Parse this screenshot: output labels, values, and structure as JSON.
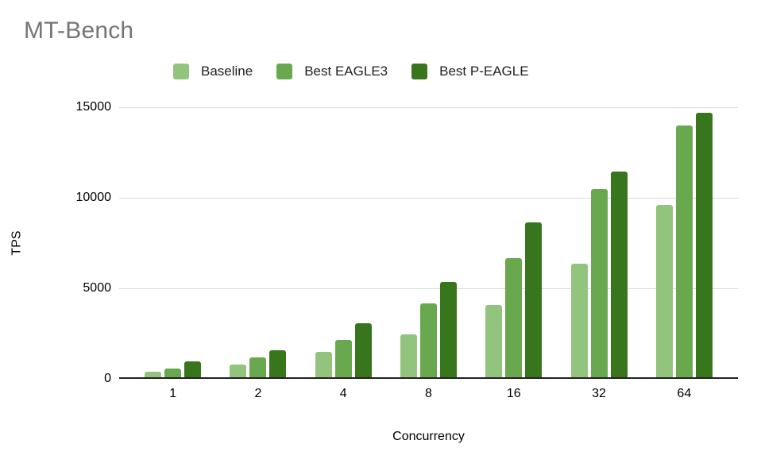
{
  "title": "MT-Bench",
  "colors": {
    "title_gray": "#757575",
    "gridline": "#d9d9d9",
    "axis_line": "#212121",
    "baseline_green": "#93c47d",
    "eagle3_green": "#6aa84f",
    "p_eagle_green": "#38761d"
  },
  "legend": [
    {
      "label": "Baseline",
      "color": "#93c47d"
    },
    {
      "label": "Best EAGLE3",
      "color": "#6aa84f"
    },
    {
      "label": "Best P-EAGLE",
      "color": "#38761d"
    }
  ],
  "chart_data": {
    "type": "bar",
    "title": "MT-Bench",
    "xlabel": "Concurrency",
    "ylabel": "TPS",
    "categories": [
      "1",
      "2",
      "4",
      "8",
      "16",
      "32",
      "64"
    ],
    "series": [
      {
        "name": "Baseline",
        "color": "#93c47d",
        "values": [
          400,
          780,
          1500,
          2450,
          4080,
          6350,
          9600
        ]
      },
      {
        "name": "Best EAGLE3",
        "color": "#6aa84f",
        "values": [
          570,
          1170,
          2170,
          4150,
          6680,
          10500,
          14000
        ]
      },
      {
        "name": "Best P-EAGLE",
        "color": "#38761d",
        "values": [
          960,
          1560,
          3050,
          5350,
          8620,
          11450,
          14700
        ]
      }
    ],
    "ylim": [
      0,
      15000
    ],
    "yticks": [
      0,
      5000,
      10000,
      15000
    ],
    "grid": true,
    "legend_position": "top"
  }
}
